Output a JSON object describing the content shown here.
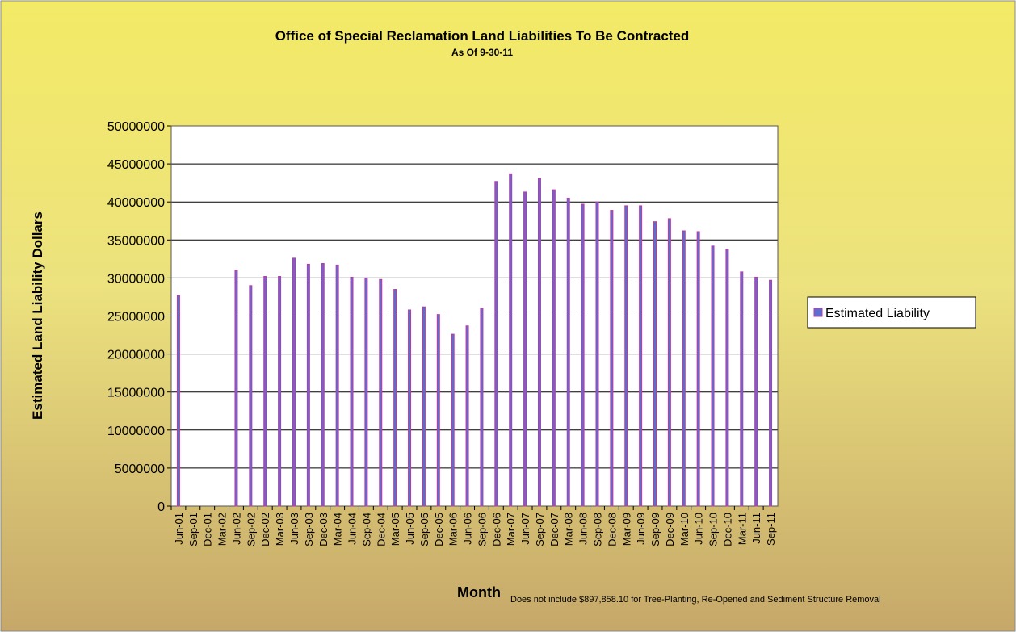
{
  "chart_data": {
    "type": "bar",
    "title": "Office of Special Reclamation Land Liabilities To Be Contracted",
    "subtitle": "As Of 9-30-11",
    "x_label": "Month",
    "y_label": "Estimated Land Liability Dollars",
    "note": "Does not include $897,858.10 for Tree-Planting, Re-Opened and Sediment Structure Removal",
    "categories": [
      "Jun-01",
      "Sep-01",
      "Dec-01",
      "Mar-02",
      "Jun-02",
      "Sep-02",
      "Dec-02",
      "Mar-03",
      "Jun-03",
      "Sep-03",
      "Dec-03",
      "Mar-04",
      "Jun-04",
      "Sep-04",
      "Dec-04",
      "Mar-05",
      "Jun-05",
      "Sep-05",
      "Dec-05",
      "Mar-06",
      "Jun-06",
      "Sep-06",
      "Dec-06",
      "Mar-07",
      "Jun-07",
      "Sep-07",
      "Dec-07",
      "Mar-08",
      "Jun-08",
      "Sep-08",
      "Dec-08",
      "Mar-09",
      "Jun-09",
      "Sep-09",
      "Dec-09",
      "Mar-10",
      "Jun-10",
      "Sep-10",
      "Dec-10",
      "Mar-11",
      "Jun-11",
      "Sep-11"
    ],
    "series": [
      {
        "name": "Estimated Liability",
        "color": "#5b6fd0",
        "edge_color": "#c0399f",
        "values": [
          27700000,
          null,
          null,
          null,
          31000000,
          29000000,
          30200000,
          30200000,
          32600000,
          31800000,
          31900000,
          31700000,
          30100000,
          30000000,
          29800000,
          28500000,
          25800000,
          26200000,
          25200000,
          22600000,
          23700000,
          26000000,
          42700000,
          43700000,
          41300000,
          43100000,
          41600000,
          40500000,
          39700000,
          40000000,
          38900000,
          39500000,
          39500000,
          37400000,
          37800000,
          36200000,
          36100000,
          34200000,
          33800000,
          30800000,
          30100000,
          29700000
        ]
      }
    ],
    "ylim": [
      0,
      50000000
    ],
    "yticks": [
      0,
      5000000,
      10000000,
      15000000,
      20000000,
      25000000,
      30000000,
      35000000,
      40000000,
      45000000,
      50000000
    ],
    "grid": true,
    "legend": "right"
  }
}
